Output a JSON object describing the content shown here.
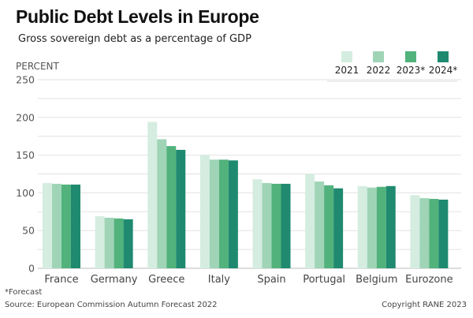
{
  "title": "Public Debt Levels in Europe",
  "subtitle": "Gross sovereign debt as a percentage of GDP",
  "footnote": "*Forecast",
  "source": "Source: European Commission Autumn Forecast 2022",
  "copyright": "Copyright RANE 2023",
  "colors": [
    "#d4ede0",
    "#9fd4b7",
    "#52b27c",
    "#1f8a70"
  ],
  "chart_data": {
    "type": "bar",
    "title": "Public Debt Levels in Europe",
    "subtitle": "Gross sovereign debt as a percentage of GDP",
    "ylabel": "PERCENT",
    "xlabel": "",
    "ylim": [
      0,
      250
    ],
    "yticks": [
      0,
      50,
      100,
      150,
      200,
      250
    ],
    "grid": true,
    "legend_position": "top-right",
    "categories": [
      "France",
      "Germany",
      "Greece",
      "Italy",
      "Spain",
      "Portugal",
      "Belgium",
      "Eurozone"
    ],
    "series": [
      {
        "name": "2021",
        "values": [
          113,
          69,
          194,
          150,
          118,
          125,
          109,
          97
        ]
      },
      {
        "name": "2022",
        "values": [
          112,
          67,
          171,
          144,
          113,
          115,
          107,
          93
        ]
      },
      {
        "name": "2023*",
        "values": [
          111,
          66,
          162,
          144,
          112,
          110,
          108,
          92
        ]
      },
      {
        "name": "2024*",
        "values": [
          111,
          65,
          157,
          143,
          112,
          106,
          109,
          91
        ]
      }
    ]
  }
}
